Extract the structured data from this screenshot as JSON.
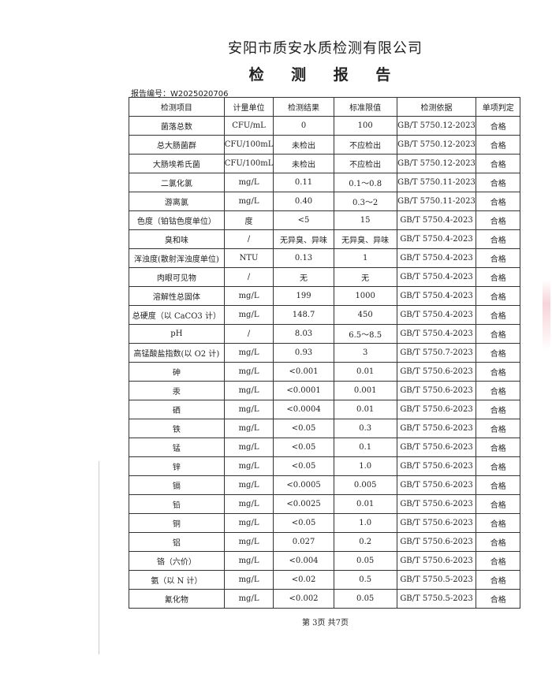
{
  "company": "安阳市质安水质检测有限公司",
  "title": "检 测 报 告",
  "report_no_label": "报告编号：",
  "report_no": "W2025020706",
  "columns": [
    "检测项目",
    "计量单位",
    "检测结果",
    "标准限值",
    "检测依据",
    "单项判定"
  ],
  "rows": [
    [
      "菌落总数",
      "CFU/mL",
      "0",
      "100",
      "GB/T 5750.12-2023",
      "合格"
    ],
    [
      "总大肠菌群",
      "CFU/100mL",
      "未检出",
      "不应检出",
      "GB/T 5750.12-2023",
      "合格"
    ],
    [
      "大肠埃希氏菌",
      "CFU/100mL",
      "未检出",
      "不应检出",
      "GB/T 5750.12-2023",
      "合格"
    ],
    [
      "二氯化氯",
      "mg/L",
      "0.11",
      "0.1～0.8",
      "GB/T 5750.11-2023",
      "合格"
    ],
    [
      "游离氯",
      "mg/L",
      "0.40",
      "0.3～2",
      "GB/T 5750.11-2023",
      "合格"
    ],
    [
      "色度（铂钴色度单位）",
      "度",
      "<5",
      "15",
      "GB/T 5750.4-2023",
      "合格"
    ],
    [
      "臭和味",
      "/",
      "无异臭、异味",
      "无异臭、异味",
      "GB/T 5750.4-2023",
      "合格"
    ],
    [
      "浑浊度(散射浑浊度单位)",
      "NTU",
      "0.13",
      "1",
      "GB/T 5750.4-2023",
      "合格"
    ],
    [
      "肉眼可见物",
      "/",
      "无",
      "无",
      "GB/T 5750.4-2023",
      "合格"
    ],
    [
      "溶解性总固体",
      "mg/L",
      "199",
      "1000",
      "GB/T 5750.4-2023",
      "合格"
    ],
    [
      "总硬度（以 CaCO3 计）",
      "mg/L",
      "148.7",
      "450",
      "GB/T 5750.4-2023",
      "合格"
    ],
    [
      "pH",
      "/",
      "8.03",
      "6.5～8.5",
      "GB/T 5750.4-2023",
      "合格"
    ],
    [
      "高锰酸盐指数(以 O2 计)",
      "mg/L",
      "0.93",
      "3",
      "GB/T 5750.7-2023",
      "合格"
    ],
    [
      "砷",
      "mg/L",
      "<0.001",
      "0.01",
      "GB/T 5750.6-2023",
      "合格"
    ],
    [
      "汞",
      "mg/L",
      "<0.0001",
      "0.001",
      "GB/T 5750.6-2023",
      "合格"
    ],
    [
      "硒",
      "mg/L",
      "<0.0004",
      "0.01",
      "GB/T 5750.6-2023",
      "合格"
    ],
    [
      "铁",
      "mg/L",
      "<0.05",
      "0.3",
      "GB/T 5750.6-2023",
      "合格"
    ],
    [
      "锰",
      "mg/L",
      "<0.05",
      "0.1",
      "GB/T 5750.6-2023",
      "合格"
    ],
    [
      "锌",
      "mg/L",
      "<0.05",
      "1.0",
      "GB/T 5750.6-2023",
      "合格"
    ],
    [
      "镉",
      "mg/L",
      "<0.0005",
      "0.005",
      "GB/T 5750.6-2023",
      "合格"
    ],
    [
      "铅",
      "mg/L",
      "<0.0025",
      "0.01",
      "GB/T 5750.6-2023",
      "合格"
    ],
    [
      "铜",
      "mg/L",
      "<0.05",
      "1.0",
      "GB/T 5750.6-2023",
      "合格"
    ],
    [
      "铝",
      "mg/L",
      "0.027",
      "0.2",
      "GB/T 5750.6-2023",
      "合格"
    ],
    [
      "铬（六价）",
      "mg/L",
      "<0.004",
      "0.05",
      "GB/T 5750.6-2023",
      "合格"
    ],
    [
      "氨（以 N 计）",
      "mg/L",
      "<0.02",
      "0.5",
      "GB/T 5750.5-2023",
      "合格"
    ],
    [
      "氰化物",
      "mg/L",
      "<0.002",
      "0.05",
      "GB/T 5750.5-2023",
      "合格"
    ]
  ],
  "footer": "第 3页  共7页"
}
